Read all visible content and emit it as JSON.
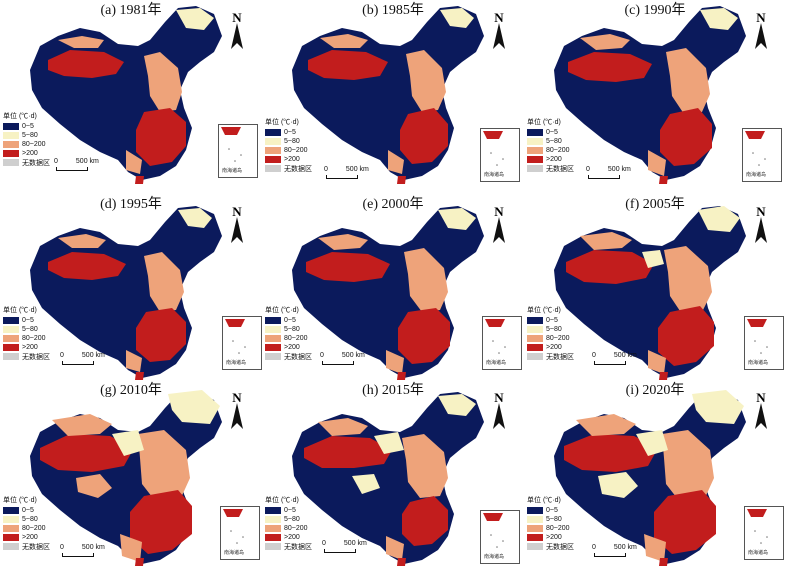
{
  "panels": [
    {
      "title": "(a) 1981年"
    },
    {
      "title": "(b) 1985年"
    },
    {
      "title": "(c) 1990年"
    },
    {
      "title": "(d) 1995年"
    },
    {
      "title": "(e) 2000年"
    },
    {
      "title": "(f) 2005年"
    },
    {
      "title": "(g) 2010年"
    },
    {
      "title": "(h) 2015年"
    },
    {
      "title": "(i) 2020年"
    }
  ],
  "legend": {
    "unit": "单位 (℃·d)",
    "items": [
      {
        "label": "0~5",
        "color": "#0b1a5c"
      },
      {
        "label": "5~80",
        "color": "#f7f2c4"
      },
      {
        "label": "80~200",
        "color": "#eea37a"
      },
      {
        "label": ">200",
        "color": "#c21d1d"
      },
      {
        "label": "无数据区",
        "color": "#cfcfcf"
      }
    ]
  },
  "scale_bar": {
    "zero": "0",
    "distance": "500 km"
  },
  "north_arrow": {
    "label": "N"
  },
  "inset": {
    "caption": "南海诸岛"
  }
}
